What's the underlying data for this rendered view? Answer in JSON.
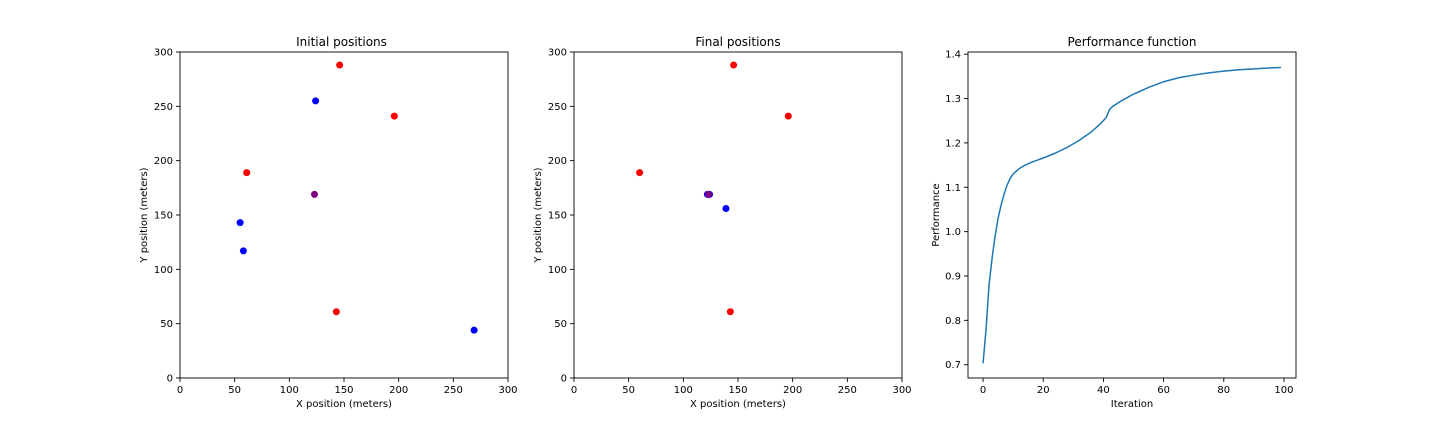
{
  "chart_data": [
    {
      "type": "scatter",
      "title": "Initial positions",
      "xlabel": "X position (meters)",
      "ylabel": "Y position (meters)",
      "xlim": [
        0,
        300
      ],
      "ylim": [
        0,
        300
      ],
      "xticks": [
        "0",
        "50",
        "100",
        "150",
        "200",
        "250",
        "300"
      ],
      "yticks": [
        "0",
        "50",
        "100",
        "150",
        "200",
        "250",
        "300"
      ],
      "grid": false,
      "points": [
        {
          "x": 146,
          "y": 288,
          "color": "#ff0000"
        },
        {
          "x": 196,
          "y": 241,
          "color": "#ff0000"
        },
        {
          "x": 61,
          "y": 189,
          "color": "#ff0000"
        },
        {
          "x": 143,
          "y": 61,
          "color": "#ff0000"
        },
        {
          "x": 124,
          "y": 255,
          "color": "#0000ff"
        },
        {
          "x": 55,
          "y": 143,
          "color": "#0000ff"
        },
        {
          "x": 58,
          "y": 117,
          "color": "#0000ff"
        },
        {
          "x": 269,
          "y": 44,
          "color": "#0000ff"
        },
        {
          "x": 123,
          "y": 169,
          "color": "#800080"
        }
      ]
    },
    {
      "type": "scatter",
      "title": "Final positions",
      "xlabel": "X position (meters)",
      "ylabel": "Y position (meters)",
      "xlim": [
        0,
        300
      ],
      "ylim": [
        0,
        300
      ],
      "xticks": [
        "0",
        "50",
        "100",
        "150",
        "200",
        "250",
        "300"
      ],
      "yticks": [
        "0",
        "50",
        "100",
        "150",
        "200",
        "250",
        "300"
      ],
      "grid": false,
      "points": [
        {
          "x": 146,
          "y": 288,
          "color": "#ff0000"
        },
        {
          "x": 196,
          "y": 241,
          "color": "#ff0000"
        },
        {
          "x": 60,
          "y": 189,
          "color": "#ff0000"
        },
        {
          "x": 143,
          "y": 61,
          "color": "#ff0000"
        },
        {
          "x": 139,
          "y": 156,
          "color": "#0000ff"
        },
        {
          "x": 122,
          "y": 169,
          "color": "#0000ff"
        },
        {
          "x": 123,
          "y": 169,
          "color": "#0000ff"
        },
        {
          "x": 124,
          "y": 169,
          "color": "#0000ff"
        },
        {
          "x": 123,
          "y": 169,
          "color": "#800080"
        }
      ]
    },
    {
      "type": "line",
      "title": "Performance function",
      "xlabel": "Iteration",
      "ylabel": "Performance",
      "xlim": [
        -5,
        104
      ],
      "ylim": [
        0.67,
        1.405
      ],
      "xticks": [
        "0",
        "20",
        "40",
        "60",
        "80",
        "100"
      ],
      "yticks": [
        "0.7",
        "0.8",
        "0.9",
        "1.0",
        "1.1",
        "1.2",
        "1.3",
        "1.4"
      ],
      "grid": false,
      "color": "#1f77b4",
      "series": [
        {
          "x": [
            0,
            1,
            2,
            3,
            4,
            5,
            6,
            7,
            8,
            9,
            10,
            12,
            14,
            16,
            18,
            20,
            24,
            28,
            32,
            36,
            39,
            41,
            42,
            43,
            46,
            50,
            55,
            60,
            65,
            70,
            75,
            80,
            85,
            90,
            95,
            99
          ],
          "values": [
            0.703,
            0.78,
            0.88,
            0.94,
            0.99,
            1.03,
            1.06,
            1.085,
            1.105,
            1.12,
            1.13,
            1.142,
            1.15,
            1.156,
            1.161,
            1.166,
            1.177,
            1.19,
            1.206,
            1.225,
            1.243,
            1.258,
            1.275,
            1.282,
            1.295,
            1.31,
            1.325,
            1.338,
            1.347,
            1.353,
            1.358,
            1.362,
            1.365,
            1.367,
            1.369,
            1.37
          ]
        }
      ]
    }
  ]
}
